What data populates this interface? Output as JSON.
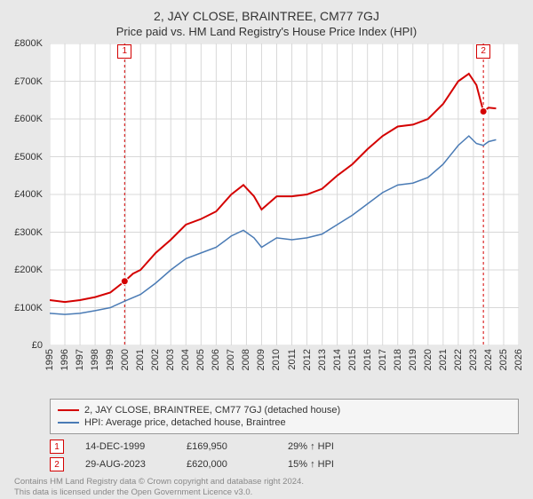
{
  "title": "2, JAY CLOSE, BRAINTREE, CM77 7GJ",
  "subtitle": "Price paid vs. HM Land Registry's House Price Index (HPI)",
  "chart": {
    "type": "line",
    "background_color": "#ffffff",
    "grid_color": "#d8d8d8",
    "ylim": [
      0,
      800000
    ],
    "ytick_step": 100000,
    "ytick_labels": [
      "£0",
      "£100K",
      "£200K",
      "£300K",
      "£400K",
      "£500K",
      "£600K",
      "£700K",
      "£800K"
    ],
    "xlim": [
      1995,
      2026
    ],
    "xtick_step": 1,
    "xticks": [
      1995,
      1996,
      1997,
      1998,
      1999,
      2000,
      2001,
      2002,
      2003,
      2004,
      2005,
      2006,
      2007,
      2008,
      2009,
      2010,
      2011,
      2012,
      2013,
      2014,
      2015,
      2016,
      2017,
      2018,
      2019,
      2020,
      2021,
      2022,
      2023,
      2024,
      2025,
      2026
    ],
    "series": [
      {
        "name": "property",
        "label": "2, JAY CLOSE, BRAINTREE, CM77 7GJ (detached house)",
        "color": "#d40000",
        "line_width": 2,
        "data": [
          [
            1995.0,
            120000
          ],
          [
            1996.0,
            115000
          ],
          [
            1997.0,
            120000
          ],
          [
            1998.0,
            128000
          ],
          [
            1999.0,
            140000
          ],
          [
            1999.95,
            169950
          ],
          [
            2000.5,
            190000
          ],
          [
            2001.0,
            200000
          ],
          [
            2002.0,
            245000
          ],
          [
            2003.0,
            280000
          ],
          [
            2004.0,
            320000
          ],
          [
            2005.0,
            335000
          ],
          [
            2006.0,
            355000
          ],
          [
            2007.0,
            400000
          ],
          [
            2007.8,
            425000
          ],
          [
            2008.5,
            395000
          ],
          [
            2009.0,
            360000
          ],
          [
            2010.0,
            395000
          ],
          [
            2011.0,
            395000
          ],
          [
            2012.0,
            400000
          ],
          [
            2013.0,
            415000
          ],
          [
            2014.0,
            450000
          ],
          [
            2015.0,
            480000
          ],
          [
            2016.0,
            520000
          ],
          [
            2017.0,
            555000
          ],
          [
            2018.0,
            580000
          ],
          [
            2019.0,
            585000
          ],
          [
            2020.0,
            600000
          ],
          [
            2021.0,
            640000
          ],
          [
            2022.0,
            700000
          ],
          [
            2022.7,
            720000
          ],
          [
            2023.2,
            690000
          ],
          [
            2023.66,
            620000
          ],
          [
            2024.0,
            630000
          ],
          [
            2024.5,
            628000
          ]
        ]
      },
      {
        "name": "hpi",
        "label": "HPI: Average price, detached house, Braintree",
        "color": "#4a7bb5",
        "line_width": 1.5,
        "data": [
          [
            1995.0,
            85000
          ],
          [
            1996.0,
            82000
          ],
          [
            1997.0,
            85000
          ],
          [
            1998.0,
            92000
          ],
          [
            1999.0,
            100000
          ],
          [
            2000.0,
            118000
          ],
          [
            2001.0,
            135000
          ],
          [
            2002.0,
            165000
          ],
          [
            2003.0,
            200000
          ],
          [
            2004.0,
            230000
          ],
          [
            2005.0,
            245000
          ],
          [
            2006.0,
            260000
          ],
          [
            2007.0,
            290000
          ],
          [
            2007.8,
            305000
          ],
          [
            2008.5,
            285000
          ],
          [
            2009.0,
            260000
          ],
          [
            2010.0,
            285000
          ],
          [
            2011.0,
            280000
          ],
          [
            2012.0,
            285000
          ],
          [
            2013.0,
            295000
          ],
          [
            2014.0,
            320000
          ],
          [
            2015.0,
            345000
          ],
          [
            2016.0,
            375000
          ],
          [
            2017.0,
            405000
          ],
          [
            2018.0,
            425000
          ],
          [
            2019.0,
            430000
          ],
          [
            2020.0,
            445000
          ],
          [
            2021.0,
            480000
          ],
          [
            2022.0,
            530000
          ],
          [
            2022.7,
            555000
          ],
          [
            2023.2,
            535000
          ],
          [
            2023.66,
            530000
          ],
          [
            2024.0,
            540000
          ],
          [
            2024.5,
            545000
          ]
        ]
      }
    ],
    "markers": [
      {
        "n": "1",
        "x": 1999.95,
        "y": 169950,
        "color": "#d40000",
        "date": "14-DEC-1999",
        "price": "£169,950",
        "diff_pct": "29% ↑ HPI",
        "vline": true,
        "badge_y": 780000
      },
      {
        "n": "2",
        "x": 2023.66,
        "y": 620000,
        "color": "#d40000",
        "date": "29-AUG-2023",
        "price": "£620,000",
        "diff_pct": "15% ↑ HPI",
        "vline": true,
        "badge_y": 780000
      }
    ]
  },
  "legend": {
    "entries": [
      {
        "color": "#d40000",
        "label": "2, JAY CLOSE, BRAINTREE, CM77 7GJ (detached house)"
      },
      {
        "color": "#4a7bb5",
        "label": "HPI: Average price, detached house, Braintree"
      }
    ]
  },
  "footer": {
    "line1": "Contains HM Land Registry data © Crown copyright and database right 2024.",
    "line2": "This data is licensed under the Open Government Licence v3.0."
  }
}
